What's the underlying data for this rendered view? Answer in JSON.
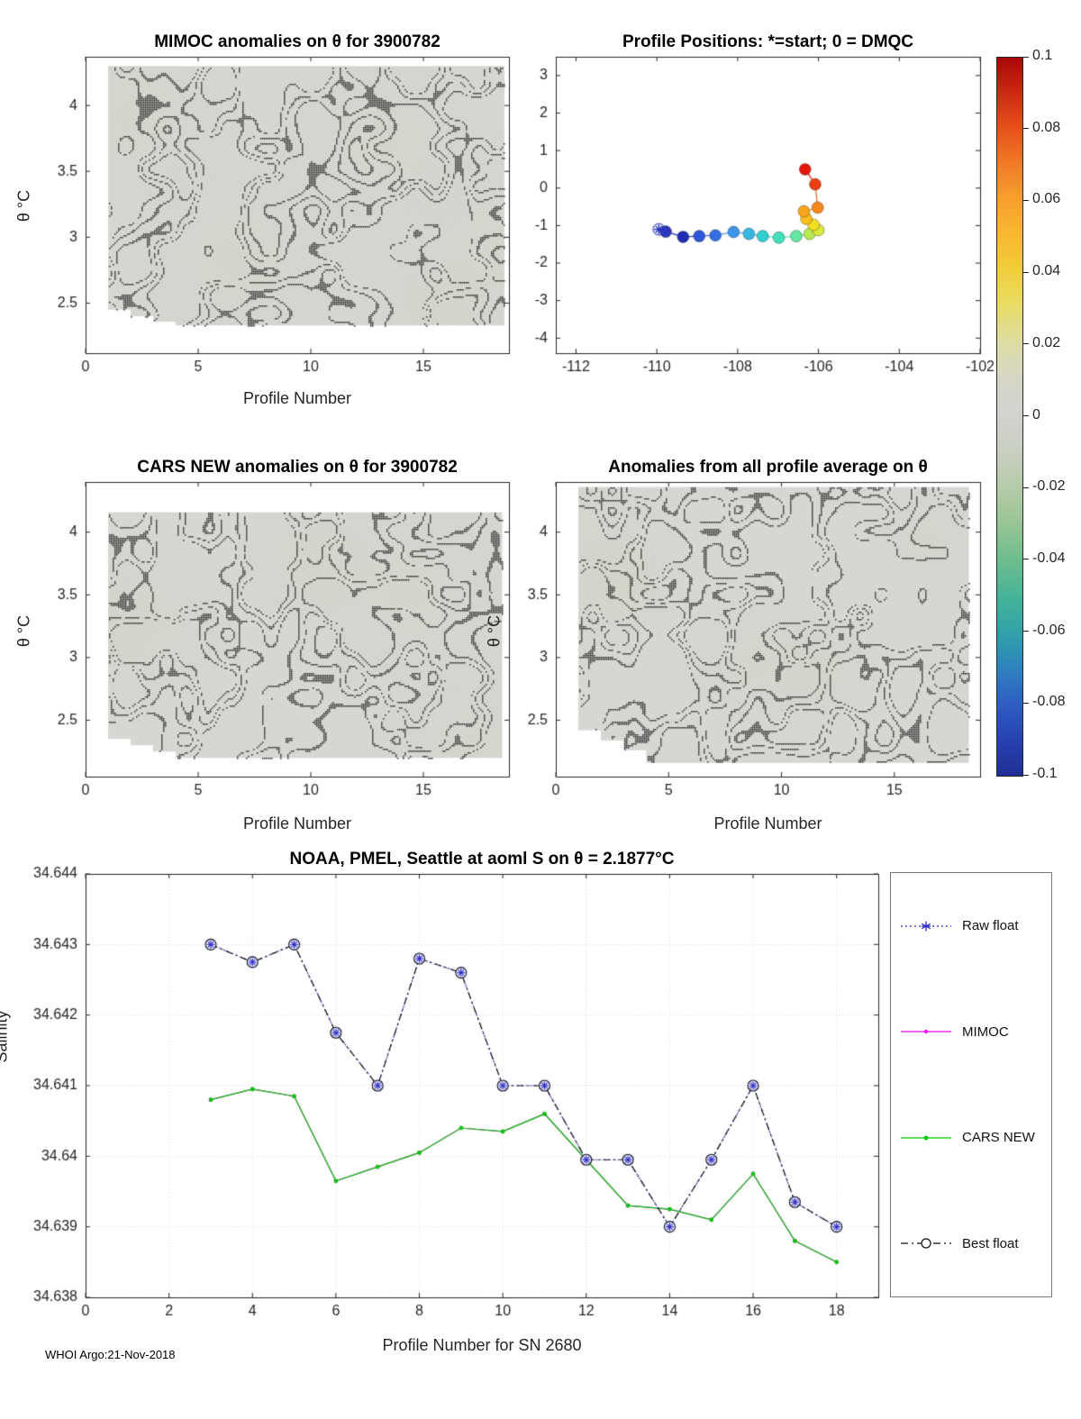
{
  "page": {
    "footer": "WHOI Argo:21-Nov-2018"
  },
  "colorbar": {
    "tick_labels": [
      "0.1",
      "0.08",
      "0.06",
      "0.04",
      "0.02",
      "0",
      "-0.02",
      "-0.04",
      "-0.06",
      "-0.08",
      "-0.1"
    ],
    "tick_values": [
      0.1,
      0.08,
      0.06,
      0.04,
      0.02,
      0,
      -0.02,
      -0.04,
      -0.06,
      -0.08,
      -0.1
    ],
    "range": [
      -0.1,
      0.1
    ],
    "stops": [
      [
        0,
        "#a80808"
      ],
      [
        4,
        "#c52310"
      ],
      [
        9,
        "#e24a1a"
      ],
      [
        14,
        "#f07424"
      ],
      [
        19,
        "#f79b2e"
      ],
      [
        24,
        "#f9b430"
      ],
      [
        29,
        "#f2cc38"
      ],
      [
        34,
        "#e9dc60"
      ],
      [
        40,
        "#dddda8"
      ],
      [
        45,
        "#d6d6c8"
      ],
      [
        50,
        "#d2d2d0"
      ],
      [
        55,
        "#c9cfc0"
      ],
      [
        60,
        "#b5cba8"
      ],
      [
        65,
        "#97c595"
      ],
      [
        70,
        "#6ebd8e"
      ],
      [
        75,
        "#47b497"
      ],
      [
        80,
        "#30a3a9"
      ],
      [
        85,
        "#2f82bd"
      ],
      [
        90,
        "#2e5dc3"
      ],
      [
        95,
        "#2841b2"
      ],
      [
        100,
        "#1f2e95"
      ]
    ]
  },
  "legend": {
    "items": [
      {
        "label": "Raw float",
        "color": "#2929cc"
      },
      {
        "label": "MIMOC",
        "color": "#ff00ff"
      },
      {
        "label": "CARS NEW",
        "color": "#00cc00"
      },
      {
        "label": "Best float",
        "color": "#111111"
      }
    ]
  },
  "chart_data": [
    {
      "id": "mimoc-contour",
      "type": "contour",
      "title": "MIMOC anomalies on θ  for 3900782",
      "xlabel": "Profile Number",
      "ylabel": "θ °C",
      "xlim": [
        0,
        18.8
      ],
      "ylim": [
        2.12,
        4.37
      ],
      "xticks": {
        "v": [
          0,
          5,
          10,
          15
        ],
        "l": [
          "0",
          "5",
          "10",
          "15"
        ]
      },
      "yticks": {
        "v": [
          2.5,
          3,
          3.5,
          4
        ],
        "l": [
          "2.5",
          "3",
          "3.5",
          "4"
        ]
      },
      "patch": {
        "xmin": 1,
        "xmax": 18.6,
        "ytop": 4.3,
        "steps": [
          [
            1,
            2.45
          ],
          [
            2,
            2.4
          ],
          [
            3,
            2.36
          ],
          [
            4,
            2.33
          ]
        ]
      },
      "seed": 7,
      "description": "near-zero anomaly field (gray, ~0 on colorbar) with dotted zero-level contour lines"
    },
    {
      "id": "trajectory",
      "type": "scatter",
      "title": "Profile Positions: *=start; 0 = DMQC",
      "xlim": [
        -112.5,
        -102
      ],
      "ylim": [
        -4.4,
        3.5
      ],
      "xticks": {
        "v": [
          -112,
          -110,
          -108,
          -106,
          -104,
          -102
        ],
        "l": [
          "-112",
          "-110",
          "-108",
          "-106",
          "-104",
          "-102"
        ]
      },
      "yticks": {
        "v": [
          -4,
          -3,
          -2,
          -1,
          0,
          1,
          2,
          3
        ],
        "l": [
          "-4",
          "-3",
          "-2",
          "-1",
          "0",
          "1",
          "2",
          "3"
        ]
      },
      "points": [
        {
          "x": -109.95,
          "y": -1.1,
          "c": "#3142c8",
          "marker": "star-start"
        },
        {
          "x": -109.78,
          "y": -1.16,
          "c": "#2a38bf"
        },
        {
          "x": -109.35,
          "y": -1.3,
          "c": "#1f2eb5"
        },
        {
          "x": -108.95,
          "y": -1.28,
          "c": "#2f55d9"
        },
        {
          "x": -108.55,
          "y": -1.26,
          "c": "#336fe3"
        },
        {
          "x": -108.1,
          "y": -1.17,
          "c": "#3b95e9"
        },
        {
          "x": -107.72,
          "y": -1.22,
          "c": "#38b7e3"
        },
        {
          "x": -107.38,
          "y": -1.28,
          "c": "#30d0d0"
        },
        {
          "x": -106.98,
          "y": -1.32,
          "c": "#3fe0bb"
        },
        {
          "x": -106.55,
          "y": -1.28,
          "c": "#63e89e"
        },
        {
          "x": -106.22,
          "y": -1.22,
          "c": "#b5ea52"
        },
        {
          "x": -106.0,
          "y": -1.12,
          "c": "#d9ea3c"
        },
        {
          "x": -106.12,
          "y": -0.98,
          "c": "#f2df25"
        },
        {
          "x": -106.3,
          "y": -0.82,
          "c": "#fac01c"
        },
        {
          "x": -106.36,
          "y": -0.62,
          "c": "#f8a41f"
        },
        {
          "x": -106.02,
          "y": -0.52,
          "c": "#f8871e"
        },
        {
          "x": -106.08,
          "y": 0.1,
          "c": "#ee3d13"
        },
        {
          "x": -106.33,
          "y": 0.5,
          "c": "#e2190c"
        }
      ]
    },
    {
      "id": "cars-contour",
      "type": "contour",
      "title": "CARS NEW anomalies on θ for 3900782",
      "xlabel": "Profile Number",
      "ylabel": "θ °C",
      "xlim": [
        0,
        18.8
      ],
      "ylim": [
        2.05,
        4.4
      ],
      "xticks": {
        "v": [
          0,
          5,
          10,
          15
        ],
        "l": [
          "0",
          "5",
          "10",
          "15"
        ]
      },
      "yticks": {
        "v": [
          2.5,
          3,
          3.5,
          4
        ],
        "l": [
          "2.5",
          "3",
          "3.5",
          "4"
        ]
      },
      "patch": {
        "xmin": 1,
        "xmax": 18.5,
        "ytop": 4.16,
        "steps": [
          [
            1,
            2.35
          ],
          [
            2,
            2.3
          ],
          [
            3,
            2.25
          ],
          [
            4,
            2.2
          ]
        ]
      },
      "seed": 13,
      "description": "near-zero anomaly field (gray, ~0 on colorbar) with dotted zero-level contour lines"
    },
    {
      "id": "allprof-contour",
      "type": "contour",
      "title": "Anomalies from all profile average on θ",
      "xlabel": "Profile Number",
      "ylabel": "θ °C",
      "xlim": [
        0,
        18.8
      ],
      "ylim": [
        2.05,
        4.4
      ],
      "xticks": {
        "v": [
          0,
          5,
          10,
          15
        ],
        "l": [
          "0",
          "5",
          "10",
          "15"
        ]
      },
      "yticks": {
        "v": [
          2.5,
          3,
          3.5,
          4
        ],
        "l": [
          "2.5",
          "3",
          "3.5",
          "4"
        ]
      },
      "patch": {
        "xmin": 1,
        "xmax": 18.3,
        "ytop": 4.36,
        "steps": [
          [
            1,
            2.42
          ],
          [
            2,
            2.34
          ],
          [
            3,
            2.26
          ],
          [
            4,
            2.16
          ]
        ]
      },
      "seed": 29,
      "description": "near-zero anomaly field (gray, ~0 on colorbar) with dotted zero-level contour lines"
    },
    {
      "id": "salinity-series",
      "type": "line",
      "title": "NOAA, PMEL, Seattle at aoml S on θ = 2.1877°C",
      "xlabel": "Profile Number for SN 2680",
      "ylabel": "Salinity",
      "xlim": [
        0,
        19
      ],
      "ylim": [
        34.638,
        34.644
      ],
      "xticks": {
        "v": [
          0,
          2,
          4,
          6,
          8,
          10,
          12,
          14,
          16,
          18
        ],
        "l": [
          "0",
          "2",
          "4",
          "6",
          "8",
          "10",
          "12",
          "14",
          "16",
          "18"
        ]
      },
      "yticks": {
        "v": [
          34.638,
          34.639,
          34.64,
          34.641,
          34.642,
          34.643,
          34.644
        ],
        "l": [
          "34.638",
          "34.639",
          "34.64",
          "34.641",
          "34.642",
          "34.643",
          "34.644"
        ]
      },
      "x": [
        3,
        4,
        5,
        6,
        7,
        8,
        9,
        10,
        11,
        12,
        13,
        14,
        15,
        16,
        17,
        18
      ],
      "series": [
        {
          "name": "MIMOC",
          "color": "#ff00ff",
          "line": "solid",
          "marker": "point",
          "values": [
            34.6408,
            34.64095,
            34.64085,
            34.63965,
            34.63985,
            34.64005,
            34.6404,
            34.64035,
            34.6406,
            34.63995,
            34.6393,
            34.63925,
            34.6391,
            34.63975,
            34.6388,
            34.6385
          ]
        },
        {
          "name": "CARS NEW",
          "color": "#00cc00",
          "line": "solid",
          "marker": "point",
          "values": [
            34.6408,
            34.64095,
            34.64085,
            34.63965,
            34.63985,
            34.64005,
            34.6404,
            34.64035,
            34.6406,
            34.63995,
            34.6393,
            34.63925,
            34.6391,
            34.63975,
            34.6388,
            34.6385
          ]
        },
        {
          "name": "Raw float",
          "color": "#2929cc",
          "line": "dotted",
          "marker": "star",
          "values": [
            34.643,
            34.64275,
            34.643,
            34.64175,
            34.641,
            34.6428,
            34.6426,
            34.641,
            34.641,
            34.63995,
            34.63995,
            34.639,
            34.63995,
            34.641,
            34.63935,
            34.639
          ]
        },
        {
          "name": "Best float",
          "color": "#111111",
          "line": "dashdot",
          "marker": "circle",
          "values": [
            34.643,
            34.64275,
            34.643,
            34.64175,
            34.641,
            34.6428,
            34.6426,
            34.641,
            34.641,
            34.63995,
            34.63995,
            34.639,
            34.63995,
            34.641,
            34.63935,
            34.639
          ]
        }
      ]
    }
  ]
}
